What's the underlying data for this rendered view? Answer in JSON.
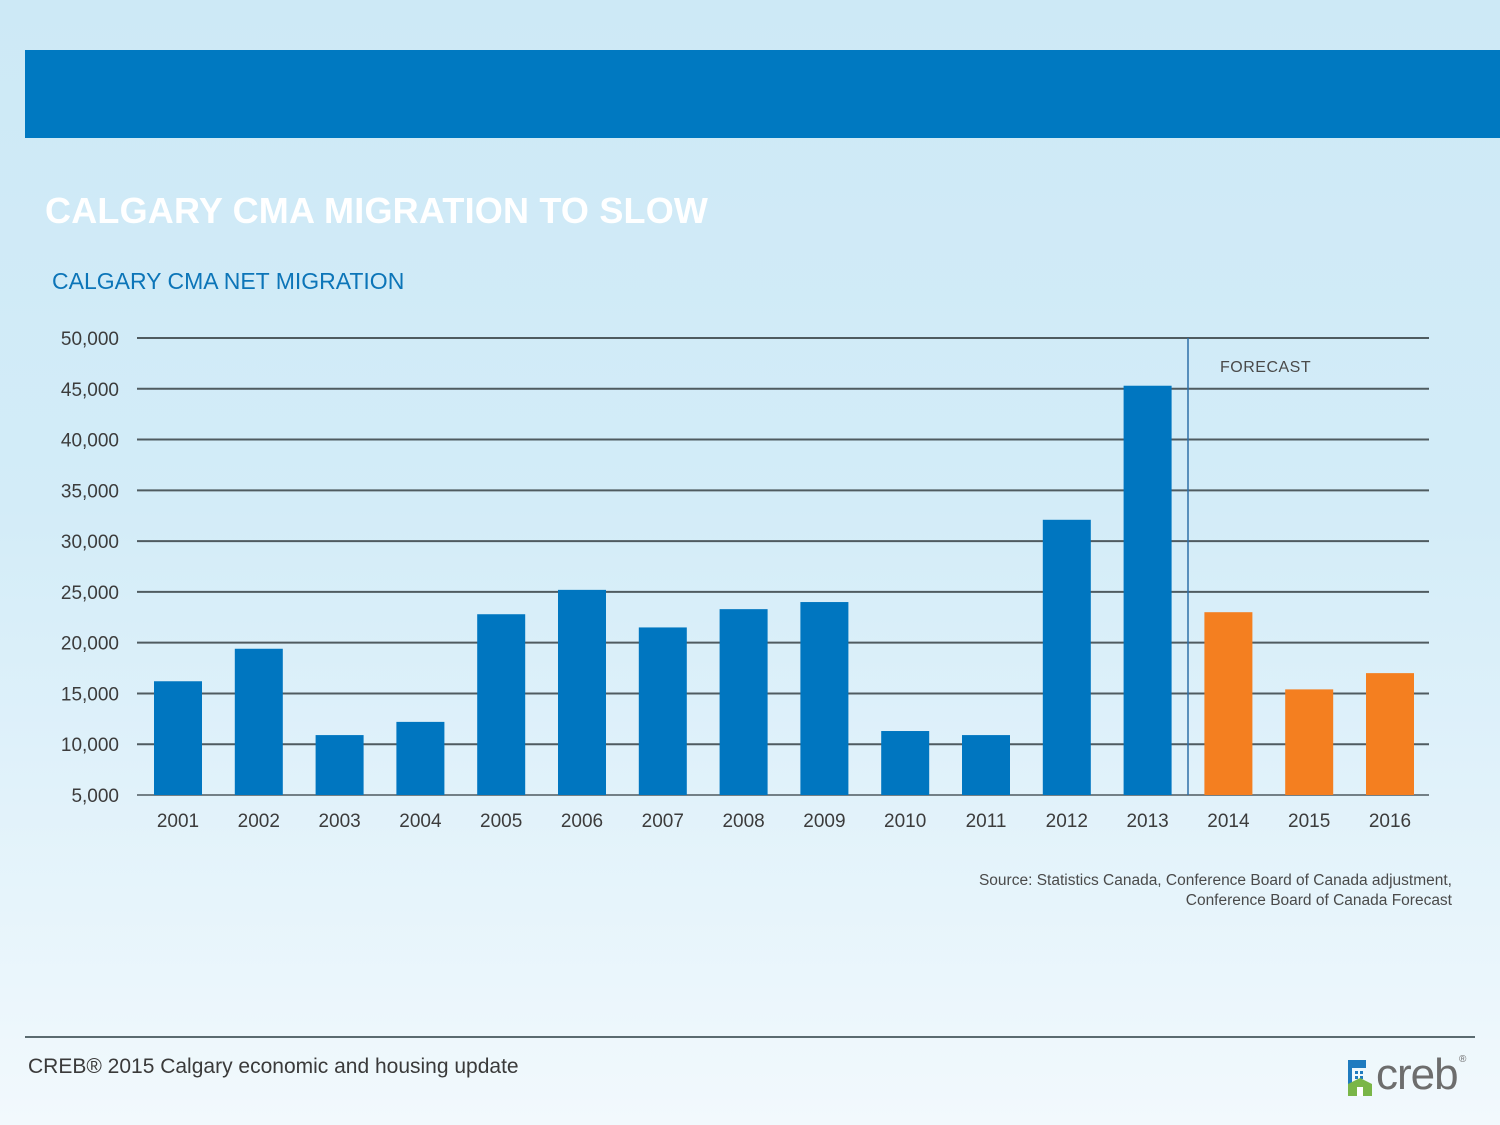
{
  "slide": {
    "title": "CALGARY CMA MIGRATION TO SLOW",
    "footer": "CREB® 2015 Calgary economic and housing update",
    "source_line1": "Source: Statistics Canada, Conference Board of Canada adjustment,",
    "source_line2": "Conference Board of Canada Forecast",
    "logo_text": "creb",
    "logo_mark": "®"
  },
  "colors": {
    "header_bar": "#0079c1",
    "actual_bar": "#0076c0",
    "forecast_bar": "#f47f20",
    "gridline": "#4f5b60"
  },
  "chart_data": {
    "type": "bar",
    "title": "CALGARY CMA NET MIGRATION",
    "xlabel": "",
    "ylabel": "",
    "categories": [
      "2001",
      "2002",
      "2003",
      "2004",
      "2005",
      "2006",
      "2007",
      "2008",
      "2009",
      "2010",
      "2011",
      "2012",
      "2013",
      "2014",
      "2015",
      "2016"
    ],
    "values": [
      16200,
      19400,
      10900,
      12200,
      22800,
      25200,
      21500,
      23300,
      24000,
      11300,
      10900,
      32100,
      45300,
      23000,
      15400,
      17000
    ],
    "forecast_from": "2014",
    "forecast_label": "FORECAST",
    "ylim": [
      5000,
      50000
    ],
    "yticks": [
      5000,
      10000,
      15000,
      20000,
      25000,
      30000,
      35000,
      40000,
      45000,
      50000
    ],
    "ytick_labels": [
      "5,000",
      "10,000",
      "15,000",
      "20,000",
      "25,000",
      "30,000",
      "35,000",
      "40,000",
      "45,000",
      "50,000"
    ],
    "grid": true,
    "legend": "none"
  }
}
